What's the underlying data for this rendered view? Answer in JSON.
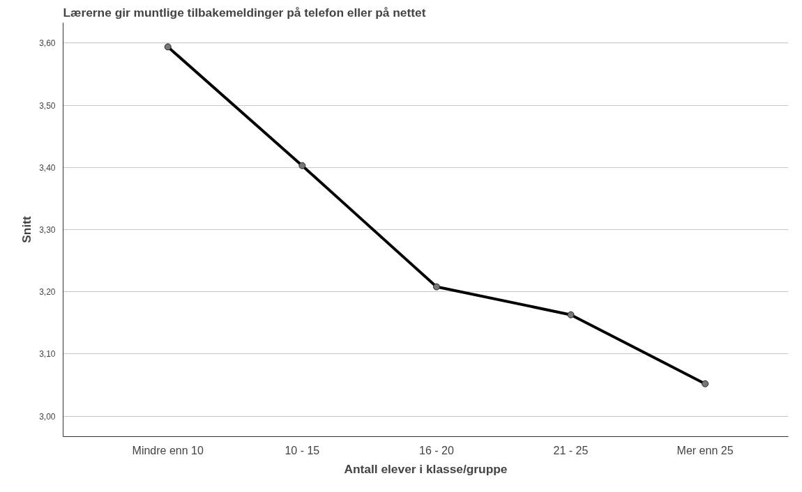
{
  "chart_data": {
    "type": "line",
    "title": "Lærerne gir muntlige tilbakemeldinger på telefon eller på nettet",
    "xlabel": "Antall elever i klasse/gruppe",
    "ylabel": "Snitt",
    "categories": [
      "Mindre enn 10",
      "10 - 15",
      "16 - 20",
      "21 - 25",
      "Mer enn 25"
    ],
    "series": [
      {
        "color": "#000000",
        "values": [
          3.594,
          3.403,
          3.208,
          3.163,
          3.052
        ]
      }
    ],
    "ylim": [
      2.967,
      3.633
    ],
    "yticks": [
      {
        "value": 3.0,
        "label": "3,00"
      },
      {
        "value": 3.1,
        "label": "3,10"
      },
      {
        "value": 3.2,
        "label": "3,20"
      },
      {
        "value": 3.3,
        "label": "3,30"
      },
      {
        "value": 3.4,
        "label": "3,40"
      },
      {
        "value": 3.5,
        "label": "3,50"
      },
      {
        "value": 3.6,
        "label": "3,60"
      }
    ],
    "grid": "y",
    "marker": "circle",
    "line_style": "solid"
  }
}
